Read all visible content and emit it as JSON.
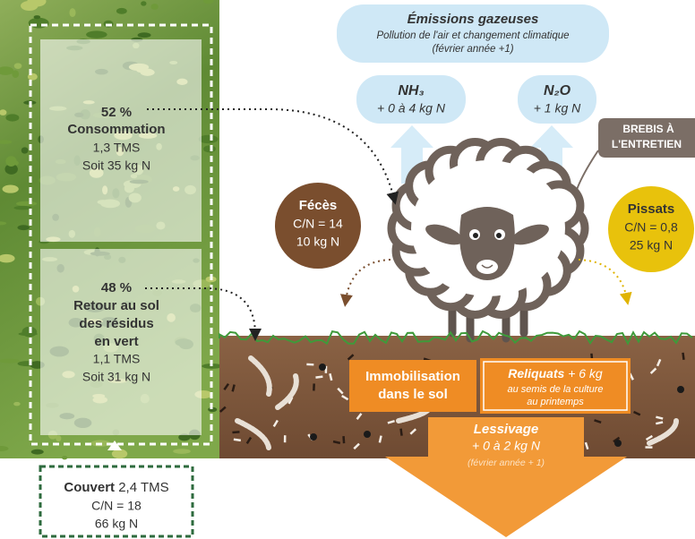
{
  "emissions": {
    "title": "Émissions gazeuses",
    "subtitle": "Pollution de l'air et changement climatique",
    "date": "(février année +1)"
  },
  "nh3": {
    "label": "NH₃",
    "value": "+ 0 à 4 kg N"
  },
  "n2o": {
    "label": "N₂O",
    "value": "+ 1 kg N"
  },
  "brebis": [
    "BREBIS À",
    "L'ENTRETIEN"
  ],
  "feces": {
    "label": "Fécès",
    "lines": [
      "C/N = 14",
      "10 kg N"
    ]
  },
  "pissats": {
    "label": "Pissats",
    "lines": [
      "C/N = 0,8",
      "25 kg N"
    ]
  },
  "consommation": {
    "percent": "52 %",
    "label": "Consommation",
    "lines": [
      "1,3 TMS",
      "Soit 35 kg N"
    ]
  },
  "retour": {
    "percent": "48 %",
    "label": [
      "Retour au sol",
      "des résidus",
      "en vert"
    ],
    "lines": [
      "1,1 TMS",
      "Soit 31 kg N"
    ]
  },
  "couvert": {
    "label": "Couvert",
    "value": "2,4 TMS",
    "lines": [
      "C/N = 18",
      "66 kg N"
    ]
  },
  "immobilisation": [
    "Immobilisation",
    "dans le sol"
  ],
  "reliquats": {
    "label": "Reliquats",
    "value": "+ 6 kg",
    "lines": [
      "au semis de la culture",
      "au printemps"
    ]
  },
  "lessivage": {
    "label": "Lessivage",
    "value": "+ 0 à 2 kg N",
    "date": "(février année + 1)"
  }
}
